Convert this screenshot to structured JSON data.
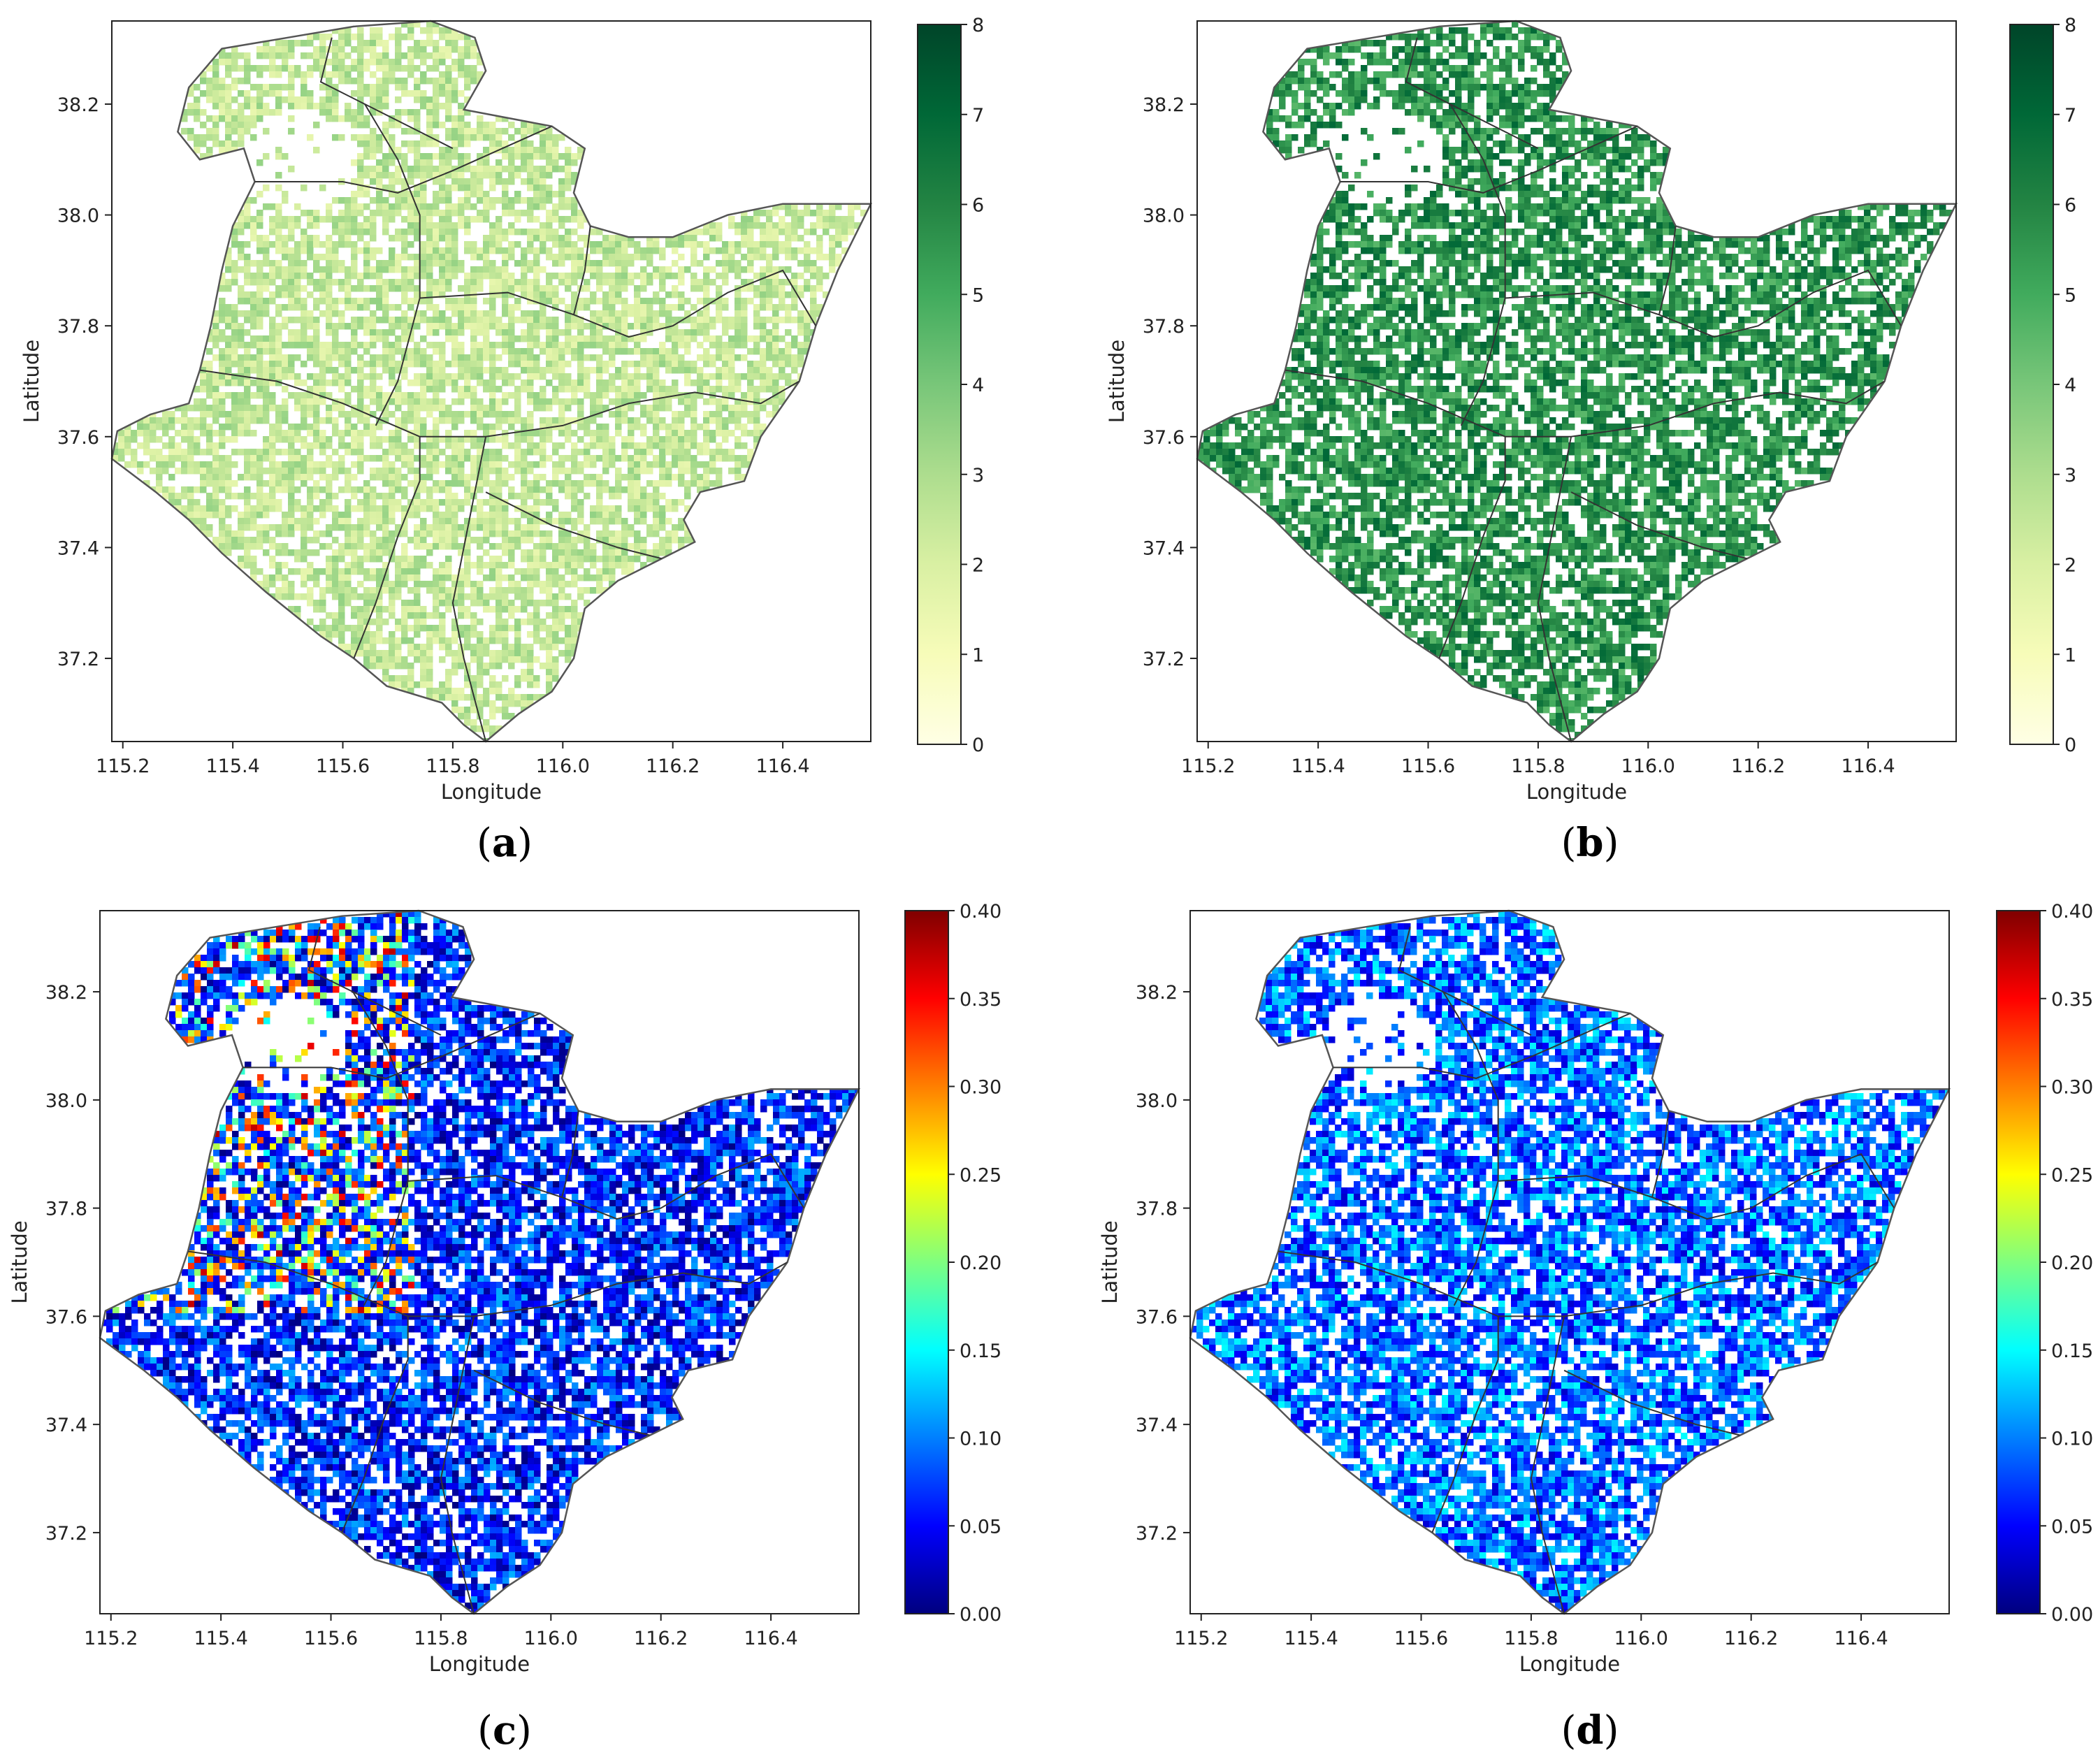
{
  "figure": {
    "panel_count": 4
  },
  "chart_data": [
    {
      "type": "heatmap",
      "panel": "a",
      "caption": "a",
      "xlabel": "Longitude",
      "ylabel": "Latitude",
      "xlim": [
        115.18,
        116.56
      ],
      "ylim": [
        37.05,
        38.35
      ],
      "xticks": [
        "115.2",
        "115.4",
        "115.6",
        "115.8",
        "116.0",
        "116.2",
        "116.4"
      ],
      "xtick_values": [
        115.2,
        115.4,
        115.6,
        115.8,
        116.0,
        116.2,
        116.4
      ],
      "yticks": [
        "37.2",
        "37.4",
        "37.6",
        "37.8",
        "38.0",
        "38.2"
      ],
      "ytick_values": [
        37.2,
        37.4,
        37.6,
        37.8,
        38.0,
        38.2
      ],
      "colorbar": {
        "cmap": "YlGn",
        "range": [
          0,
          8
        ],
        "ticks": [
          "0",
          "1",
          "2",
          "3",
          "4",
          "5",
          "6",
          "7",
          "8"
        ],
        "tick_values": [
          0,
          1,
          2,
          3,
          4,
          5,
          6,
          7,
          8
        ],
        "stops": [
          "#ffffe5",
          "#f7fcb9",
          "#d9f0a3",
          "#addd8e",
          "#78c679",
          "#41ab5d",
          "#238443",
          "#006837",
          "#004529"
        ]
      },
      "field_value_range": [
        1.5,
        3.5
      ],
      "coverage": 0.72,
      "grid": false
    },
    {
      "type": "heatmap",
      "panel": "b",
      "caption": "b",
      "xlabel": "Longitude",
      "ylabel": "Latitude",
      "xlim": [
        115.18,
        116.56
      ],
      "ylim": [
        37.05,
        38.35
      ],
      "xticks": [
        "115.2",
        "115.4",
        "115.6",
        "115.8",
        "116.0",
        "116.2",
        "116.4"
      ],
      "xtick_values": [
        115.2,
        115.4,
        115.6,
        115.8,
        116.0,
        116.2,
        116.4
      ],
      "yticks": [
        "37.2",
        "37.4",
        "37.6",
        "37.8",
        "38.0",
        "38.2"
      ],
      "ytick_values": [
        37.2,
        37.4,
        37.6,
        37.8,
        38.0,
        38.2
      ],
      "colorbar": {
        "cmap": "YlGn",
        "range": [
          0,
          8
        ],
        "ticks": [
          "0",
          "1",
          "2",
          "3",
          "4",
          "5",
          "6",
          "7",
          "8"
        ],
        "tick_values": [
          0,
          1,
          2,
          3,
          4,
          5,
          6,
          7,
          8
        ],
        "stops": [
          "#ffffe5",
          "#f7fcb9",
          "#d9f0a3",
          "#addd8e",
          "#78c679",
          "#41ab5d",
          "#238443",
          "#006837",
          "#004529"
        ]
      },
      "field_value_range": [
        4.5,
        7.0
      ],
      "coverage": 0.68,
      "grid": false
    },
    {
      "type": "heatmap",
      "panel": "c",
      "caption": "c",
      "xlabel": "Longitude",
      "ylabel": "Latitude",
      "xlim": [
        115.18,
        116.56
      ],
      "ylim": [
        37.05,
        38.35
      ],
      "xticks": [
        "115.2",
        "115.4",
        "115.6",
        "115.8",
        "116.0",
        "116.2",
        "116.4"
      ],
      "xtick_values": [
        115.2,
        115.4,
        115.6,
        115.8,
        116.0,
        116.2,
        116.4
      ],
      "yticks": [
        "37.2",
        "37.4",
        "37.6",
        "37.8",
        "38.0",
        "38.2"
      ],
      "ytick_values": [
        37.2,
        37.4,
        37.6,
        37.8,
        38.0,
        38.2
      ],
      "colorbar": {
        "cmap": "jet",
        "range": [
          0,
          0.4
        ],
        "ticks": [
          "0.00",
          "0.05",
          "0.10",
          "0.15",
          "0.20",
          "0.25",
          "0.30",
          "0.35",
          "0.40"
        ],
        "tick_values": [
          0,
          0.05,
          0.1,
          0.15,
          0.2,
          0.25,
          0.3,
          0.35,
          0.4
        ],
        "stops": [
          "#00007f",
          "#0000ff",
          "#007fff",
          "#00ffff",
          "#7fff7f",
          "#ffff00",
          "#ff7f00",
          "#ff0000",
          "#7f0000"
        ]
      },
      "field_value_range": [
        0.0,
        0.12
      ],
      "hotspot_value_range": [
        0.15,
        0.38
      ],
      "coverage": 0.74,
      "grid": false
    },
    {
      "type": "heatmap",
      "panel": "d",
      "caption": "d",
      "xlabel": "Longitude",
      "ylabel": "Latitude",
      "xlim": [
        115.18,
        116.56
      ],
      "ylim": [
        37.05,
        38.35
      ],
      "xticks": [
        "115.2",
        "115.4",
        "115.6",
        "115.8",
        "116.0",
        "116.2",
        "116.4"
      ],
      "xtick_values": [
        115.2,
        115.4,
        115.6,
        115.8,
        116.0,
        116.2,
        116.4
      ],
      "yticks": [
        "37.2",
        "37.4",
        "37.6",
        "37.8",
        "38.0",
        "38.2"
      ],
      "ytick_values": [
        37.2,
        37.4,
        37.6,
        37.8,
        38.0,
        38.2
      ],
      "colorbar": {
        "cmap": "jet",
        "range": [
          0,
          0.4
        ],
        "ticks": [
          "0.00",
          "0.05",
          "0.10",
          "0.15",
          "0.20",
          "0.25",
          "0.30",
          "0.35",
          "0.40"
        ],
        "tick_values": [
          0,
          0.05,
          0.1,
          0.15,
          0.2,
          0.25,
          0.3,
          0.35,
          0.4
        ],
        "stops": [
          "#00007f",
          "#0000ff",
          "#007fff",
          "#00ffff",
          "#7fff7f",
          "#ffff00",
          "#ff7f00",
          "#ff0000",
          "#7f0000"
        ]
      },
      "field_value_range": [
        0.03,
        0.15
      ],
      "coverage": 0.74,
      "grid": false
    }
  ],
  "map_outline": {
    "outer": [
      [
        115.76,
        38.35
      ],
      [
        115.84,
        38.32
      ],
      [
        115.86,
        38.26
      ],
      [
        115.82,
        38.19
      ],
      [
        115.98,
        38.16
      ],
      [
        116.04,
        38.12
      ],
      [
        116.02,
        38.04
      ],
      [
        116.05,
        37.98
      ],
      [
        116.12,
        37.96
      ],
      [
        116.2,
        37.96
      ],
      [
        116.3,
        38.0
      ],
      [
        116.4,
        38.02
      ],
      [
        116.56,
        38.02
      ],
      [
        116.5,
        37.9
      ],
      [
        116.46,
        37.8
      ],
      [
        116.43,
        37.7
      ],
      [
        116.36,
        37.6
      ],
      [
        116.33,
        37.52
      ],
      [
        116.25,
        37.5
      ],
      [
        116.22,
        37.45
      ],
      [
        116.24,
        37.41
      ],
      [
        116.18,
        37.38
      ],
      [
        116.1,
        37.34
      ],
      [
        116.04,
        37.29
      ],
      [
        116.02,
        37.2
      ],
      [
        115.98,
        37.14
      ],
      [
        115.92,
        37.1
      ],
      [
        115.86,
        37.05
      ],
      [
        115.82,
        37.08
      ],
      [
        115.78,
        37.12
      ],
      [
        115.68,
        37.15
      ],
      [
        115.62,
        37.2
      ],
      [
        115.56,
        37.24
      ],
      [
        115.46,
        37.32
      ],
      [
        115.38,
        37.39
      ],
      [
        115.32,
        37.45
      ],
      [
        115.26,
        37.5
      ],
      [
        115.18,
        37.56
      ],
      [
        115.19,
        37.61
      ],
      [
        115.25,
        37.64
      ],
      [
        115.32,
        37.66
      ],
      [
        115.34,
        37.72
      ],
      [
        115.36,
        37.8
      ],
      [
        115.38,
        37.9
      ],
      [
        115.4,
        37.98
      ],
      [
        115.44,
        38.06
      ],
      [
        115.42,
        38.12
      ],
      [
        115.34,
        38.1
      ],
      [
        115.3,
        38.15
      ],
      [
        115.32,
        38.23
      ],
      [
        115.38,
        38.3
      ],
      [
        115.5,
        38.32
      ],
      [
        115.62,
        38.34
      ]
    ],
    "inner": [
      [
        [
          115.44,
          38.06
        ],
        [
          115.6,
          38.06
        ],
        [
          115.7,
          38.04
        ],
        [
          115.8,
          38.08
        ],
        [
          115.98,
          38.16
        ]
      ],
      [
        [
          115.58,
          38.32
        ],
        [
          115.56,
          38.24
        ],
        [
          115.64,
          38.2
        ],
        [
          115.8,
          38.12
        ]
      ],
      [
        [
          115.64,
          38.2
        ],
        [
          115.7,
          38.1
        ],
        [
          115.74,
          38.0
        ],
        [
          115.74,
          37.85
        ],
        [
          115.7,
          37.7
        ],
        [
          115.66,
          37.62
        ]
      ],
      [
        [
          115.34,
          37.72
        ],
        [
          115.48,
          37.7
        ],
        [
          115.6,
          37.66
        ],
        [
          115.74,
          37.6
        ],
        [
          115.86,
          37.6
        ],
        [
          116.0,
          37.62
        ],
        [
          116.12,
          37.66
        ],
        [
          116.24,
          37.68
        ],
        [
          116.36,
          37.66
        ],
        [
          116.43,
          37.7
        ]
      ],
      [
        [
          115.74,
          37.85
        ],
        [
          115.9,
          37.86
        ],
        [
          116.02,
          37.82
        ],
        [
          116.12,
          37.78
        ],
        [
          116.2,
          37.8
        ],
        [
          116.3,
          37.86
        ],
        [
          116.4,
          37.9
        ],
        [
          116.46,
          37.8
        ]
      ],
      [
        [
          115.86,
          37.6
        ],
        [
          115.84,
          37.5
        ],
        [
          115.82,
          37.4
        ],
        [
          115.8,
          37.3
        ],
        [
          115.82,
          37.2
        ],
        [
          115.86,
          37.05
        ]
      ],
      [
        [
          115.86,
          37.5
        ],
        [
          115.98,
          37.44
        ],
        [
          116.1,
          37.4
        ],
        [
          116.18,
          37.38
        ]
      ],
      [
        [
          115.62,
          37.2
        ],
        [
          115.66,
          37.3
        ],
        [
          115.7,
          37.42
        ],
        [
          115.74,
          37.52
        ],
        [
          115.74,
          37.6
        ]
      ],
      [
        [
          116.02,
          37.82
        ],
        [
          116.04,
          37.9
        ],
        [
          116.05,
          37.98
        ]
      ]
    ]
  }
}
